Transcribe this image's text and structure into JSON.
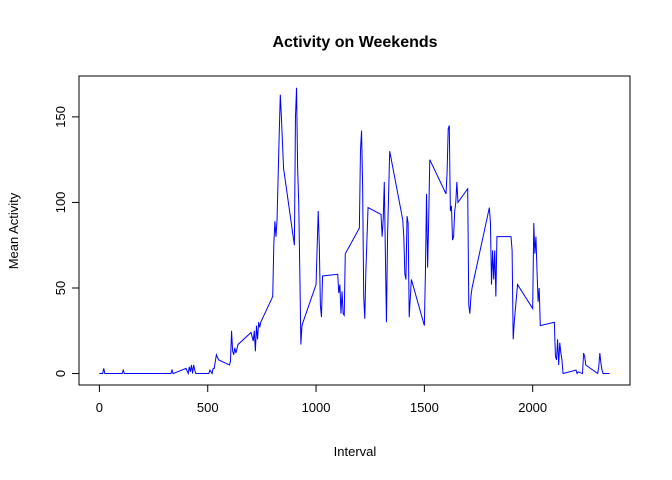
{
  "chart_data": {
    "type": "line",
    "title": "Activity on Weekends",
    "x_label": "Interval",
    "y_label": "Mean Activity",
    "color": "#0000ff",
    "x": [
      0,
      5,
      10,
      15,
      20,
      25,
      100,
      105,
      110,
      115,
      200,
      300,
      330,
      335,
      340,
      400,
      410,
      415,
      420,
      425,
      430,
      435,
      440,
      445,
      500,
      505,
      510,
      520,
      525,
      530,
      540,
      550,
      600,
      605,
      610,
      615,
      620,
      625,
      630,
      640,
      700,
      710,
      715,
      720,
      725,
      730,
      735,
      740,
      745,
      800,
      805,
      810,
      815,
      820,
      830,
      835,
      840,
      845,
      850,
      900,
      905,
      910,
      915,
      920,
      925,
      930,
      935,
      940,
      1000,
      1010,
      1015,
      1020,
      1025,
      1030,
      1100,
      1105,
      1110,
      1115,
      1120,
      1125,
      1130,
      1135,
      1200,
      1205,
      1210,
      1215,
      1220,
      1225,
      1230,
      1240,
      1300,
      1305,
      1310,
      1315,
      1320,
      1325,
      1330,
      1340,
      1400,
      1405,
      1410,
      1415,
      1420,
      1425,
      1430,
      1440,
      1500,
      1505,
      1510,
      1515,
      1520,
      1525,
      1600,
      1605,
      1610,
      1615,
      1620,
      1625,
      1630,
      1635,
      1640,
      1645,
      1650,
      1655,
      1700,
      1705,
      1710,
      1715,
      1720,
      1800,
      1805,
      1810,
      1815,
      1820,
      1825,
      1830,
      1835,
      1900,
      1905,
      1910,
      1915,
      1930,
      2000,
      2005,
      2010,
      2015,
      2020,
      2025,
      2030,
      2035,
      2100,
      2105,
      2110,
      2115,
      2120,
      2125,
      2130,
      2135,
      2140,
      2200,
      2205,
      2210,
      2230,
      2235,
      2240,
      2245,
      2300,
      2305,
      2310,
      2315,
      2320,
      2325,
      2355
    ],
    "values": [
      0,
      0,
      0,
      0,
      3,
      0,
      0,
      0,
      2,
      0,
      0,
      0,
      0,
      2,
      0,
      3,
      0,
      4,
      1,
      5,
      0,
      5,
      2,
      0,
      0,
      0,
      2,
      0,
      3,
      3,
      11,
      8,
      5,
      7,
      25,
      13,
      11,
      15,
      12,
      17,
      24,
      19,
      25,
      13,
      28,
      20,
      30,
      27,
      30,
      45,
      75,
      89,
      80,
      90,
      140,
      163,
      150,
      135,
      120,
      75,
      150,
      167,
      120,
      100,
      60,
      17,
      28,
      30,
      52,
      95,
      75,
      40,
      33,
      57,
      58,
      47,
      52,
      35,
      48,
      35,
      34,
      70,
      85,
      130,
      142,
      110,
      45,
      32,
      60,
      97,
      93,
      80,
      90,
      112,
      70,
      30,
      80,
      130,
      90,
      80,
      58,
      55,
      92,
      88,
      33,
      55,
      28,
      60,
      105,
      62,
      90,
      125,
      105,
      118,
      143,
      145,
      95,
      98,
      78,
      80,
      95,
      100,
      112,
      100,
      108,
      40,
      35,
      45,
      50,
      97,
      88,
      52,
      72,
      55,
      72,
      45,
      80,
      80,
      72,
      20,
      30,
      52,
      38,
      88,
      70,
      80,
      60,
      42,
      50,
      28,
      30,
      10,
      8,
      20,
      5,
      18,
      12,
      8,
      0,
      2,
      0,
      1,
      0,
      12,
      10,
      5,
      0,
      4,
      12,
      6,
      2,
      0,
      0
    ],
    "xlim": [
      -94.2,
      2449.2
    ],
    "ylim": [
      -6.7,
      173.9
    ],
    "xticks": [
      0,
      500,
      1000,
      1500,
      2000
    ],
    "yticks": [
      0,
      50,
      100,
      150
    ]
  }
}
